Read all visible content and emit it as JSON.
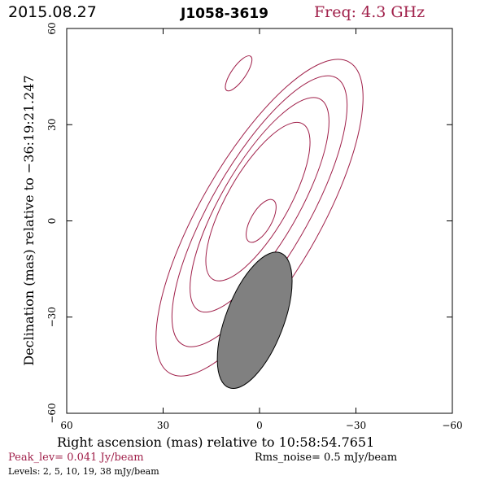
{
  "header": {
    "date": "2015.08.27",
    "source": "J1058-3619",
    "frequency": "Freq: 4.3 GHz"
  },
  "footer": {
    "peak_level": "Peak_lev=  0.041 Jy/beam",
    "rms_noise": "Rms_noise=   0.5 mJy/beam",
    "levels": "Levels:   2,    5,   10,   19,   38 mJy/beam"
  },
  "colors": {
    "contour": "#a0204a",
    "beam_fill": "#808080",
    "axes": "#000000"
  },
  "chart_data": {
    "type": "contour",
    "xlabel": "Right ascension (mas) relative to 10:58:54.7651",
    "ylabel": "Declination (mas) relative to −36:19:21.247",
    "xlim": [
      60,
      -60
    ],
    "ylim": [
      -60,
      60
    ],
    "x_ticks": [
      60,
      30,
      0,
      -30,
      -60
    ],
    "x_tick_labels": [
      "60",
      "30",
      "0",
      "−30",
      "−60"
    ],
    "y_ticks": [
      -60,
      -30,
      0,
      30,
      60
    ],
    "y_tick_labels": [
      "−60",
      "−30",
      "0",
      "30",
      "60"
    ],
    "contour_levels_mJy_per_beam": [
      2,
      5,
      10,
      19,
      38
    ],
    "contours": [
      {
        "level": 2,
        "center": [
          0,
          1
        ],
        "semi_major": 56,
        "semi_minor": 18.5,
        "pa_deg": 30
      },
      {
        "level": 5,
        "center": [
          0,
          3
        ],
        "semi_major": 48,
        "semi_minor": 15,
        "pa_deg": 30
      },
      {
        "level": 10,
        "center": [
          0,
          5
        ],
        "semi_major": 38,
        "semi_minor": 12,
        "pa_deg": 30
      },
      {
        "level": 19,
        "center": [
          0.5,
          6
        ],
        "semi_major": 28,
        "semi_minor": 9.5,
        "pa_deg": 30
      },
      {
        "level": 38,
        "center": [
          -0.5,
          0
        ],
        "semi_major": 7.5,
        "semi_minor": 3.2,
        "pa_deg": 30
      }
    ],
    "extra_component": {
      "center": [
        6.5,
        46
      ],
      "semi_major": 6.5,
      "semi_minor": 2.2,
      "pa_deg": 35
    },
    "beam": {
      "center": [
        1.5,
        -31
      ],
      "semi_major": 22.5,
      "semi_minor": 9,
      "pa_deg": 21
    }
  }
}
